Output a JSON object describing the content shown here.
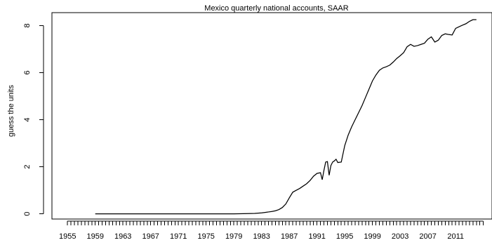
{
  "chart_data": {
    "type": "line",
    "title": "Mexico quarterly national accounts, SAAR",
    "xlabel": "",
    "ylabel": "guess the units",
    "xlim": [
      1952.75,
      2016.25
    ],
    "ylim": [
      -0.22,
      8.55
    ],
    "x_tick_labels": [
      1955,
      1959,
      1963,
      1967,
      1971,
      1975,
      1979,
      1983,
      1987,
      1991,
      1995,
      1999,
      2003,
      2007,
      2011
    ],
    "x_minor_tick_start": 1955,
    "x_minor_tick_end": 2015,
    "x_minor_tick_step": 0.5,
    "y_ticks": [
      0,
      2,
      4,
      6,
      8
    ],
    "grid": false,
    "legend": "none",
    "line_color": "#000000",
    "series": [
      {
        "points": [
          [
            1959.0,
            0.0
          ],
          [
            1963.0,
            0.0
          ],
          [
            1967.0,
            0.0
          ],
          [
            1971.0,
            0.0
          ],
          [
            1975.0,
            0.0
          ],
          [
            1979.0,
            0.0
          ],
          [
            1981.0,
            0.01
          ],
          [
            1982.0,
            0.02
          ],
          [
            1983.0,
            0.04
          ],
          [
            1983.5,
            0.06
          ],
          [
            1984.0,
            0.08
          ],
          [
            1984.5,
            0.1
          ],
          [
            1985.0,
            0.13
          ],
          [
            1985.5,
            0.18
          ],
          [
            1986.0,
            0.27
          ],
          [
            1986.5,
            0.42
          ],
          [
            1987.0,
            0.68
          ],
          [
            1987.5,
            0.92
          ],
          [
            1988.0,
            1.0
          ],
          [
            1988.5,
            1.08
          ],
          [
            1989.0,
            1.18
          ],
          [
            1989.5,
            1.28
          ],
          [
            1990.0,
            1.42
          ],
          [
            1990.5,
            1.6
          ],
          [
            1991.0,
            1.72
          ],
          [
            1991.5,
            1.75
          ],
          [
            1991.75,
            1.45
          ],
          [
            1992.0,
            1.85
          ],
          [
            1992.25,
            2.2
          ],
          [
            1992.5,
            2.22
          ],
          [
            1992.75,
            1.64
          ],
          [
            1993.0,
            2.05
          ],
          [
            1993.25,
            2.2
          ],
          [
            1993.5,
            2.25
          ],
          [
            1993.75,
            2.32
          ],
          [
            1994.0,
            2.18
          ],
          [
            1994.5,
            2.2
          ],
          [
            1995.0,
            2.9
          ],
          [
            1995.5,
            3.35
          ],
          [
            1996.0,
            3.7
          ],
          [
            1996.5,
            4.0
          ],
          [
            1997.0,
            4.3
          ],
          [
            1997.5,
            4.6
          ],
          [
            1998.0,
            4.95
          ],
          [
            1998.5,
            5.3
          ],
          [
            1999.0,
            5.65
          ],
          [
            1999.5,
            5.9
          ],
          [
            2000.0,
            6.1
          ],
          [
            2000.5,
            6.2
          ],
          [
            2001.0,
            6.25
          ],
          [
            2001.5,
            6.32
          ],
          [
            2002.0,
            6.45
          ],
          [
            2002.5,
            6.6
          ],
          [
            2003.0,
            6.72
          ],
          [
            2003.5,
            6.85
          ],
          [
            2004.0,
            7.1
          ],
          [
            2004.5,
            7.2
          ],
          [
            2005.0,
            7.12
          ],
          [
            2005.5,
            7.15
          ],
          [
            2006.0,
            7.2
          ],
          [
            2006.5,
            7.25
          ],
          [
            2007.0,
            7.42
          ],
          [
            2007.5,
            7.52
          ],
          [
            2008.0,
            7.3
          ],
          [
            2008.5,
            7.38
          ],
          [
            2009.0,
            7.58
          ],
          [
            2009.5,
            7.65
          ],
          [
            2010.0,
            7.62
          ],
          [
            2010.5,
            7.6
          ],
          [
            2011.0,
            7.88
          ],
          [
            2011.5,
            7.95
          ],
          [
            2012.0,
            8.02
          ],
          [
            2012.5,
            8.08
          ],
          [
            2013.0,
            8.18
          ],
          [
            2013.5,
            8.25
          ],
          [
            2014.0,
            8.25
          ]
        ]
      }
    ]
  }
}
